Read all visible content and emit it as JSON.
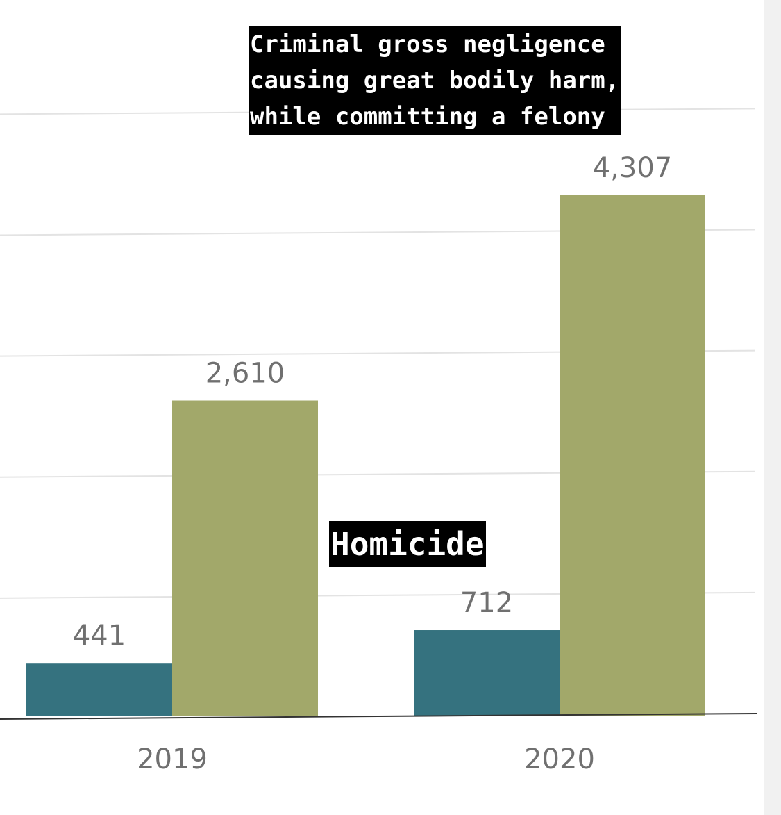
{
  "chart_data": {
    "type": "bar",
    "categories": [
      "2019",
      "2020"
    ],
    "series": [
      {
        "name": "Homicide",
        "color": "#35727f",
        "values": [
          441,
          712
        ]
      },
      {
        "name": "Criminal gross negligence causing great bodily harm, while committing a felony",
        "color": "#a2a86a",
        "values": [
          2610,
          4307
        ]
      }
    ],
    "ylim": [
      0,
      5000
    ],
    "grid": true,
    "data_labels": [
      [
        "441",
        "712"
      ],
      [
        "2,610",
        "4,307"
      ]
    ]
  },
  "annotations": {
    "top_lines": [
      "Criminal gross negligence",
      "causing great bodily harm,",
      "while committing a felony"
    ],
    "middle": "Homicide"
  }
}
